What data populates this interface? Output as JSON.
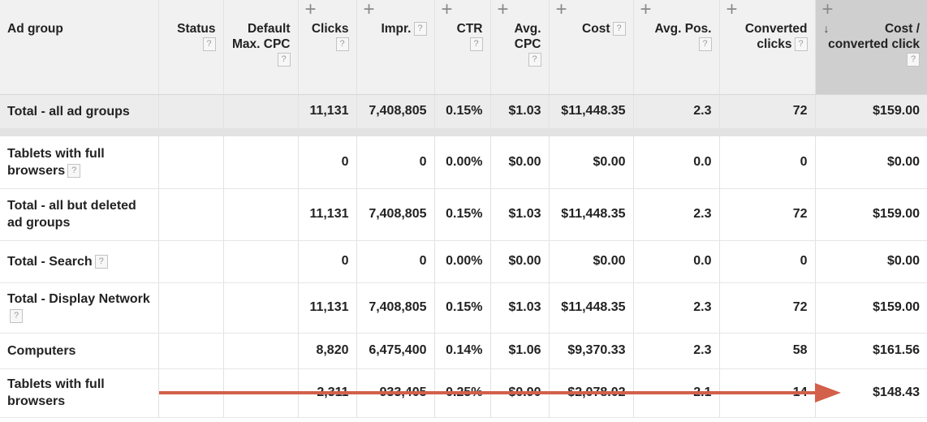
{
  "columns": [
    {
      "label": "Ad group",
      "help": false,
      "plus": false
    },
    {
      "label": "Status",
      "help": true,
      "plus": false
    },
    {
      "label": "Default Max. CPC",
      "help": true,
      "plus": false
    },
    {
      "label": "Clicks",
      "help": true,
      "plus": true
    },
    {
      "label": "Impr.",
      "help": true,
      "plus": true
    },
    {
      "label": "CTR",
      "help": true,
      "plus": true
    },
    {
      "label": "Avg. CPC",
      "help": true,
      "plus": true
    },
    {
      "label": "Cost",
      "help": true,
      "plus": true
    },
    {
      "label": "Avg. Pos.",
      "help": true,
      "plus": true
    },
    {
      "label": "Converted clicks",
      "help": true,
      "plus": true
    },
    {
      "label": "Cost / converted click",
      "help": true,
      "plus": true,
      "sorted": "descending"
    }
  ],
  "total_row": {
    "label": "Total - all ad groups",
    "values": [
      "",
      "",
      "11,131",
      "7,408,805",
      "0.15%",
      "$1.03",
      "$11,448.35",
      "2.3",
      "72",
      "$159.00"
    ]
  },
  "rows": [
    {
      "label": "Tablets with full browsers",
      "help": true,
      "values": [
        "",
        "",
        "0",
        "0",
        "0.00%",
        "$0.00",
        "$0.00",
        "0.0",
        "0",
        "$0.00"
      ]
    },
    {
      "label": "Total - all but deleted ad groups",
      "help": false,
      "values": [
        "",
        "",
        "11,131",
        "7,408,805",
        "0.15%",
        "$1.03",
        "$11,448.35",
        "2.3",
        "72",
        "$159.00"
      ]
    },
    {
      "label": "Total - Search",
      "help": true,
      "values": [
        "",
        "",
        "0",
        "0",
        "0.00%",
        "$0.00",
        "$0.00",
        "0.0",
        "0",
        "$0.00"
      ]
    },
    {
      "label": "Total - Display Network",
      "help": true,
      "values": [
        "",
        "",
        "11,131",
        "7,408,805",
        "0.15%",
        "$1.03",
        "$11,448.35",
        "2.3",
        "72",
        "$159.00"
      ]
    },
    {
      "label": "Computers",
      "help": false,
      "values": [
        "",
        "",
        "8,820",
        "6,475,400",
        "0.14%",
        "$1.06",
        "$9,370.33",
        "2.3",
        "58",
        "$161.56"
      ]
    },
    {
      "label": "Tablets with full browsers",
      "help": false,
      "values": [
        "",
        "",
        "2,311",
        "933,405",
        "0.25%",
        "$0.90",
        "$2,078.02",
        "2.1",
        "14",
        "$148.43"
      ]
    }
  ],
  "annotation": {
    "arrow_color": "#d2604a"
  }
}
